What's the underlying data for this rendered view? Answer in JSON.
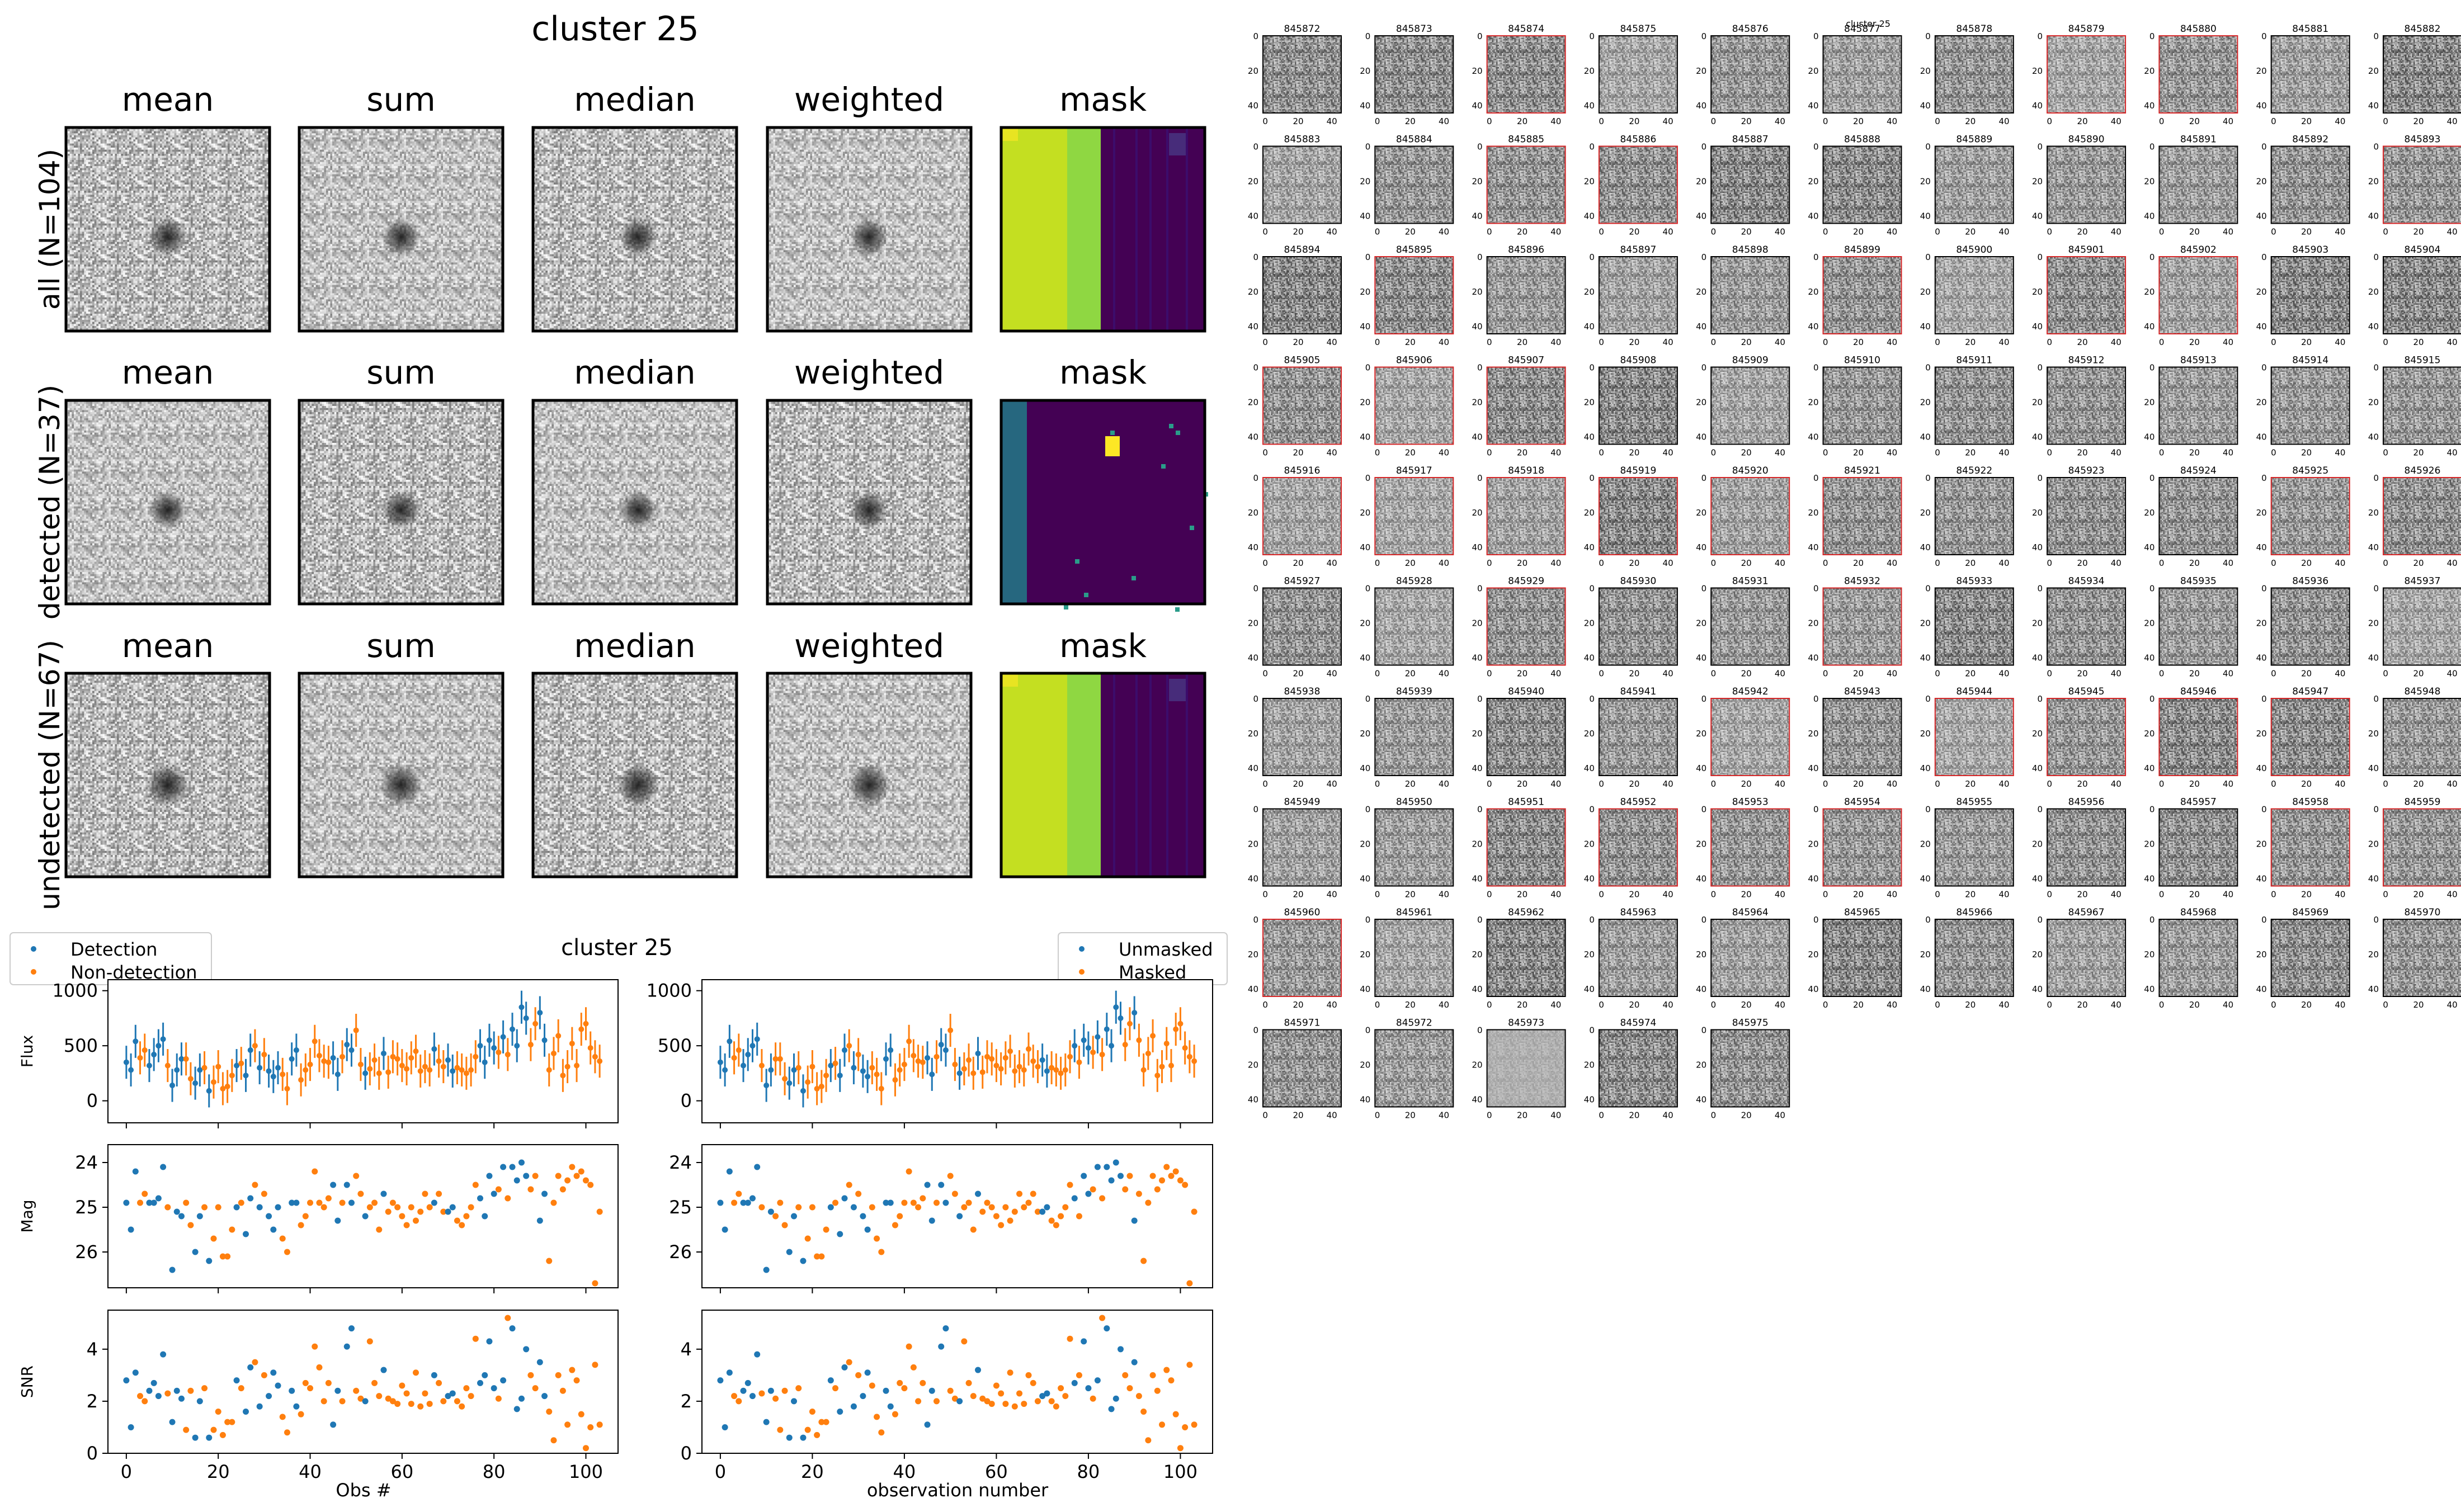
{
  "title_top": "cluster 25",
  "row_labels": [
    "all (N=104)",
    "detected (N=37)",
    "undetected (N=67)"
  ],
  "col_labels": [
    "mean",
    "sum",
    "median",
    "weighted",
    "mask"
  ],
  "mid_title": "cluster 25",
  "legend_left": [
    "Detection",
    "Non-detection"
  ],
  "legend_right": [
    "Unmasked",
    "Masked"
  ],
  "ylabels": [
    "Flux",
    "Mag",
    "SNR"
  ],
  "xlabel_left": "Obs #",
  "xlabel_right": "observation number",
  "colors": {
    "blue": "#1f77b4",
    "orange": "#ff7f0e",
    "highlight": "#d62728"
  },
  "chart_data": [
    {
      "type": "scatter",
      "title": "cluster 25",
      "x": [
        0,
        1,
        2,
        3,
        4,
        5,
        6,
        7,
        8,
        9,
        10,
        11,
        12,
        13,
        14,
        15,
        16,
        17,
        18,
        19,
        20,
        21,
        22,
        23,
        24,
        25,
        26,
        27,
        28,
        29,
        30,
        31,
        32,
        33,
        34,
        35,
        36,
        37,
        38,
        39,
        40,
        41,
        42,
        43,
        44,
        45,
        46,
        47,
        48,
        49,
        50,
        51,
        52,
        53,
        54,
        55,
        56,
        57,
        58,
        59,
        60,
        61,
        62,
        63,
        64,
        65,
        66,
        67,
        68,
        69,
        70,
        71,
        72,
        73,
        74,
        75,
        76,
        77,
        78,
        79,
        80,
        81,
        82,
        83,
        84,
        85,
        86,
        87,
        88,
        89,
        90,
        91,
        92,
        93,
        94,
        95,
        96,
        97,
        98,
        99,
        100,
        101,
        102,
        103
      ],
      "flux": [
        350,
        280,
        540,
        390,
        460,
        320,
        420,
        500,
        560,
        320,
        140,
        280,
        380,
        380,
        200,
        160,
        280,
        300,
        90,
        170,
        310,
        110,
        130,
        230,
        320,
        340,
        230,
        460,
        500,
        300,
        420,
        270,
        220,
        300,
        240,
        110,
        380,
        460,
        190,
        280,
        330,
        540,
        410,
        360,
        350,
        390,
        240,
        400,
        510,
        460,
        640,
        330,
        250,
        290,
        370,
        250,
        430,
        260,
        400,
        380,
        320,
        290,
        390,
        450,
        270,
        310,
        280,
        470,
        360,
        310,
        370,
        270,
        300,
        280,
        250,
        280,
        400,
        500,
        350,
        550,
        480,
        440,
        580,
        420,
        650,
        500,
        850,
        750,
        510,
        700,
        800,
        550,
        280,
        430,
        590,
        230,
        310,
        520,
        320,
        650,
        700,
        480,
        400,
        360
      ],
      "mag": [
        24.9,
        25.5,
        24.2,
        24.9,
        24.7,
        24.9,
        24.9,
        24.8,
        24.1,
        25.0,
        26.4,
        25.1,
        25.2,
        24.9,
        25.4,
        26.0,
        25.2,
        25.0,
        26.2,
        25.7,
        25.0,
        26.1,
        26.1,
        25.5,
        25.0,
        24.9,
        25.6,
        24.8,
        24.5,
        25.0,
        24.7,
        25.2,
        25.5,
        25.0,
        25.7,
        26.0,
        24.9,
        24.9,
        25.4,
        25.2,
        24.9,
        24.2,
        24.9,
        25.0,
        24.8,
        24.5,
        25.3,
        24.9,
        24.5,
        24.9,
        24.3,
        24.7,
        25.2,
        25.0,
        24.9,
        25.5,
        24.7,
        25.1,
        24.9,
        25.0,
        25.2,
        25.4,
        25.0,
        25.3,
        25.1,
        24.7,
        25.0,
        24.9,
        24.7,
        25.1,
        25.1,
        25.0,
        25.3,
        25.4,
        25.2,
        25.0,
        24.5,
        24.8,
        25.2,
        24.3,
        24.7,
        24.6,
        24.1,
        24.8,
        24.1,
        24.4,
        24.0,
        24.3,
        24.6,
        24.3,
        25.3,
        24.7,
        26.2,
        24.9,
        24.3,
        24.6,
        24.4,
        24.1,
        24.3,
        24.2,
        24.4,
        24.5,
        26.7,
        25.1
      ],
      "snr": [
        2.8,
        1.0,
        3.1,
        2.2,
        2.0,
        2.4,
        2.7,
        2.2,
        3.8,
        2.3,
        1.2,
        2.4,
        2.1,
        0.9,
        2.4,
        0.6,
        2.0,
        2.5,
        0.6,
        0.9,
        1.6,
        0.7,
        1.2,
        1.2,
        2.8,
        2.5,
        1.6,
        3.3,
        3.5,
        1.8,
        3.0,
        2.2,
        3.1,
        2.6,
        1.4,
        0.8,
        2.4,
        1.8,
        1.5,
        2.7,
        2.5,
        4.1,
        3.3,
        2.0,
        2.7,
        1.1,
        2.4,
        2.0,
        4.1,
        4.8,
        2.4,
        2.1,
        2.0,
        4.3,
        2.7,
        2.2,
        3.2,
        2.1,
        2.0,
        1.9,
        2.6,
        2.3,
        1.9,
        3.1,
        1.8,
        2.3,
        1.9,
        3.0,
        2.7,
        2.0,
        2.2,
        2.3,
        2.0,
        1.8,
        2.5,
        2.2,
        4.4,
        2.7,
        3.0,
        4.3,
        2.5,
        2.1,
        2.8,
        5.2,
        4.8,
        1.7,
        2.1,
        4.0,
        3.0,
        2.5,
        3.5,
        2.2,
        1.6,
        0.5,
        3.0,
        2.4,
        1.1,
        3.2,
        2.8,
        1.5,
        0.2,
        1.0,
        3.4,
        1.1
      ],
      "flux_err": 150,
      "detected_left": [
        0,
        1,
        2,
        5,
        6,
        7,
        8,
        10,
        11,
        12,
        15,
        16,
        18,
        24,
        26,
        27,
        29,
        31,
        32,
        33,
        36,
        37,
        45,
        46,
        48,
        49,
        52,
        56,
        67,
        70,
        71,
        77,
        78,
        79,
        80,
        82,
        84,
        85,
        86,
        87,
        90,
        91
      ],
      "detected_right": [
        0,
        1,
        2,
        5,
        6,
        7,
        8,
        10,
        11,
        15,
        16,
        18,
        24,
        26,
        27,
        29,
        31,
        32,
        36,
        37,
        45,
        46,
        48,
        49,
        52,
        56,
        70,
        71,
        77,
        79,
        80,
        82,
        84,
        85,
        86,
        87,
        90
      ],
      "xlim": [
        -4,
        107
      ],
      "flux_ylim": [
        -200,
        1100
      ],
      "flux_yticks": [
        0,
        500,
        1000
      ],
      "mag_ylim": [
        26.8,
        23.6
      ],
      "mag_yticks": [
        24,
        25,
        26
      ],
      "snr_ylim": [
        0,
        5.5
      ],
      "snr_yticks": [
        0,
        2,
        4
      ],
      "xticks": [
        0,
        20,
        40,
        60,
        80,
        100
      ]
    }
  ],
  "thumb_ids": [
    "845872",
    "845873",
    "845874",
    "845875",
    "845876",
    "845877",
    "845878",
    "845879",
    "845880",
    "845881",
    "845882",
    "845883",
    "845884",
    "845885",
    "845886",
    "845887",
    "845888",
    "845889",
    "845890",
    "845891",
    "845892",
    "845893",
    "845894",
    "845895",
    "845896",
    "845897",
    "845898",
    "845899",
    "845900",
    "845901",
    "845902",
    "845903",
    "845904",
    "845905",
    "845906",
    "845907",
    "845908",
    "845909",
    "845910",
    "845911",
    "845912",
    "845913",
    "845914",
    "845915",
    "845916",
    "845917",
    "845918",
    "845919",
    "845920",
    "845921",
    "845922",
    "845923",
    "845924",
    "845925",
    "845926",
    "845927",
    "845928",
    "845929",
    "845930",
    "845931",
    "845932",
    "845933",
    "845934",
    "845935",
    "845936",
    "845937",
    "845938",
    "845939",
    "845940",
    "845941",
    "845942",
    "845943",
    "845944",
    "845945",
    "845946",
    "845947",
    "845948",
    "845949",
    "845950",
    "845951",
    "845952",
    "845953",
    "845954",
    "845955",
    "845956",
    "845957",
    "845958",
    "845959",
    "845960",
    "845961",
    "845962",
    "845963",
    "845964",
    "845965",
    "845966",
    "845967",
    "845968",
    "845969",
    "845970",
    "845971",
    "845972",
    "845973",
    "845974",
    "845975"
  ],
  "thumb_red": [
    2,
    7,
    8,
    13,
    14,
    21,
    23,
    27,
    29,
    30,
    33,
    34,
    35,
    44,
    45,
    46,
    47,
    48,
    49,
    53,
    54,
    57,
    60,
    70,
    72,
    73,
    74,
    75,
    79,
    80,
    81,
    82,
    86,
    87,
    88
  ],
  "thumb_ytick_labels": [
    "0",
    "20",
    "40"
  ],
  "thumb_xtick_labels": [
    "0",
    "20",
    "40"
  ],
  "thumb_center_title": "cluster 25"
}
